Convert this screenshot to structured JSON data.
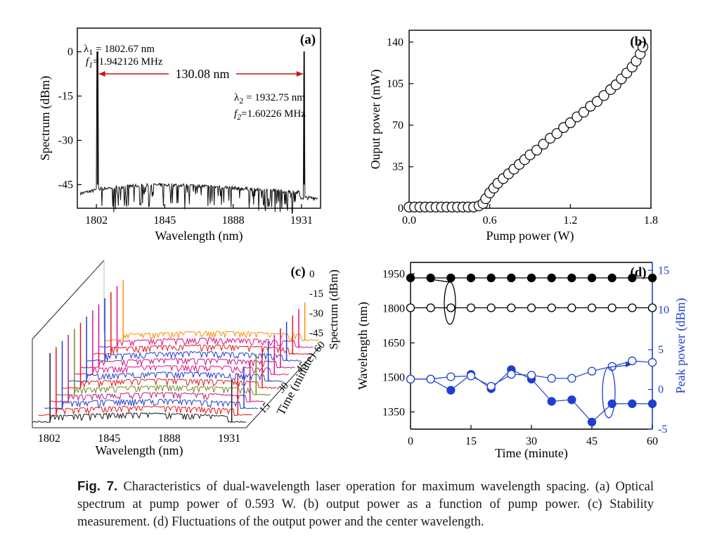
{
  "figure": {
    "label": "Fig. 7.",
    "caption": "Characteristics of dual-wavelength laser operation for maximum wavelength spacing. (a) Optical spectrum at pump power of 0.593 W. (b) output power as a function of pump power. (c) Stability measurement. (d) Fluctuations of the output power and the center wavelength."
  },
  "chart_data": [
    {
      "panel": "(a)",
      "type": "line",
      "xlabel": "Wavelength (nm)",
      "ylabel": "Spectrum (dBm)",
      "xlim": [
        1790,
        1943
      ],
      "ylim": [
        -53,
        8
      ],
      "xticks": [
        1802,
        1845,
        1888,
        1931
      ],
      "yticks": [
        0,
        -15,
        -30,
        -45
      ],
      "noise_floor_dBm": -46,
      "peaks": [
        {
          "wavelength": 1802.67,
          "value": 0
        },
        {
          "wavelength": 1932.75,
          "value": 0
        }
      ],
      "annotations": {
        "l1_sym": "λ",
        "l1_sub": "1",
        "l1_val": " = 1802.67 nm",
        "f1_sym": "f",
        "f1_sub": "1",
        "f1_val": "=1.942126 MHz",
        "spacing": "130.08 nm",
        "l2_sym": "λ",
        "l2_sub": "2",
        "l2_val": " = 1932.75 nm",
        "f2_sym": "f",
        "f2_sub": "2",
        "f2_val": "=1.60226 MHz"
      },
      "grid": false
    },
    {
      "panel": "(b)",
      "type": "scatter",
      "xlabel": "Pump power (W)",
      "ylabel": "Ouput power (mW)",
      "xlim": [
        0,
        1.8
      ],
      "ylim": [
        0,
        150
      ],
      "xticks": [
        "0.0",
        "0.6",
        "1.2",
        "1.8"
      ],
      "yticks": [
        "0",
        "35",
        "70",
        "105",
        "140"
      ],
      "series": [
        {
          "x": [
            0.0,
            0.04,
            0.08,
            0.12,
            0.16,
            0.2,
            0.24,
            0.28,
            0.32,
            0.36,
            0.4,
            0.44,
            0.48,
            0.52,
            0.55,
            0.57,
            0.6,
            0.63,
            0.66,
            0.7,
            0.74,
            0.78,
            0.82,
            0.86,
            0.9,
            0.95,
            1.0,
            1.05,
            1.1,
            1.15,
            1.2,
            1.25,
            1.3,
            1.35,
            1.4,
            1.45,
            1.5,
            1.54,
            1.58,
            1.62,
            1.66,
            1.69,
            1.72,
            1.74
          ],
          "y": [
            1,
            1,
            1,
            1,
            1,
            1,
            1,
            1,
            1,
            1,
            1,
            1,
            1,
            2,
            4,
            8,
            13,
            17,
            21,
            25,
            29,
            33,
            37,
            41,
            45,
            49,
            54,
            59,
            63,
            68,
            72,
            77,
            81,
            86,
            90,
            95,
            100,
            104,
            109,
            114,
            119,
            124,
            130,
            136
          ]
        }
      ],
      "grid": false
    },
    {
      "panel": "(c)",
      "type": "line",
      "projection": "3d-waterfall",
      "xlabel": "Wavelength (nm)",
      "ylabel": "Time (minute)",
      "zlabel": "Spectrum (dBm)",
      "xticks": [
        1802,
        1845,
        1888,
        1931
      ],
      "yticks": [
        15,
        30,
        45,
        60
      ],
      "zticks": [
        0,
        -15,
        -30,
        -45
      ],
      "time_steps": [
        0,
        5,
        10,
        15,
        20,
        25,
        30,
        35,
        40,
        45,
        50,
        55,
        60
      ],
      "peaks_nm": [
        1802.67,
        1932.75
      ],
      "series_colors": [
        "#1a1a1a",
        "#e31a1c",
        "#1f3fd0",
        "#c71585",
        "#6b8e23",
        "#e31a1c",
        "#1f3fd0",
        "#e0138a",
        "#c71585",
        "#1f3fd0",
        "#e31a1c",
        "#e0138a",
        "#ff8c00"
      ],
      "grid": false
    },
    {
      "panel": "(d)",
      "type": "line",
      "xlabel": "Time (minute)",
      "ylabel": "Wavelength (nm)",
      "ylabel_right": "Peak power (dBm)",
      "xlim": [
        0,
        60
      ],
      "ylim": [
        1275,
        2000
      ],
      "ylim_right": [
        -5,
        16
      ],
      "xticks": [
        0,
        15,
        30,
        45,
        60
      ],
      "yticks": [
        1350,
        1500,
        1650,
        1800,
        1950
      ],
      "yticks_right": [
        -5,
        0,
        5,
        10,
        15
      ],
      "x": [
        0,
        5,
        10,
        15,
        20,
        25,
        30,
        35,
        40,
        45,
        50,
        55,
        60
      ],
      "series": [
        {
          "axis": "left",
          "marker": "filled",
          "color": "#000000",
          "values": [
            1932.75,
            1932.75,
            1932.75,
            1932.75,
            1932.75,
            1932.75,
            1932.75,
            1932.75,
            1932.75,
            1932.75,
            1932.75,
            1932.75,
            1932.75
          ]
        },
        {
          "axis": "left",
          "marker": "open",
          "color": "#000000",
          "values": [
            1802.67,
            1802.67,
            1802.67,
            1802.67,
            1802.67,
            1802.67,
            1802.67,
            1802.67,
            1802.67,
            1802.67,
            1802.67,
            1802.67,
            1802.67
          ]
        },
        {
          "axis": "right",
          "marker": "filled",
          "color": "#1f3fd0",
          "values": [
            1.3,
            1.3,
            -0.1,
            1.9,
            0.1,
            2.5,
            1.3,
            -1.5,
            -1.3,
            -4.1,
            -1.8,
            -1.8,
            -1.8
          ]
        },
        {
          "axis": "right",
          "marker": "open",
          "color": "#1f3fd0",
          "values": [
            1.3,
            1.3,
            1.6,
            1.7,
            0.4,
            1.9,
            1.8,
            1.4,
            1.4,
            2.3,
            2.9,
            3.6,
            3.4
          ]
        }
      ],
      "grid": false
    }
  ]
}
